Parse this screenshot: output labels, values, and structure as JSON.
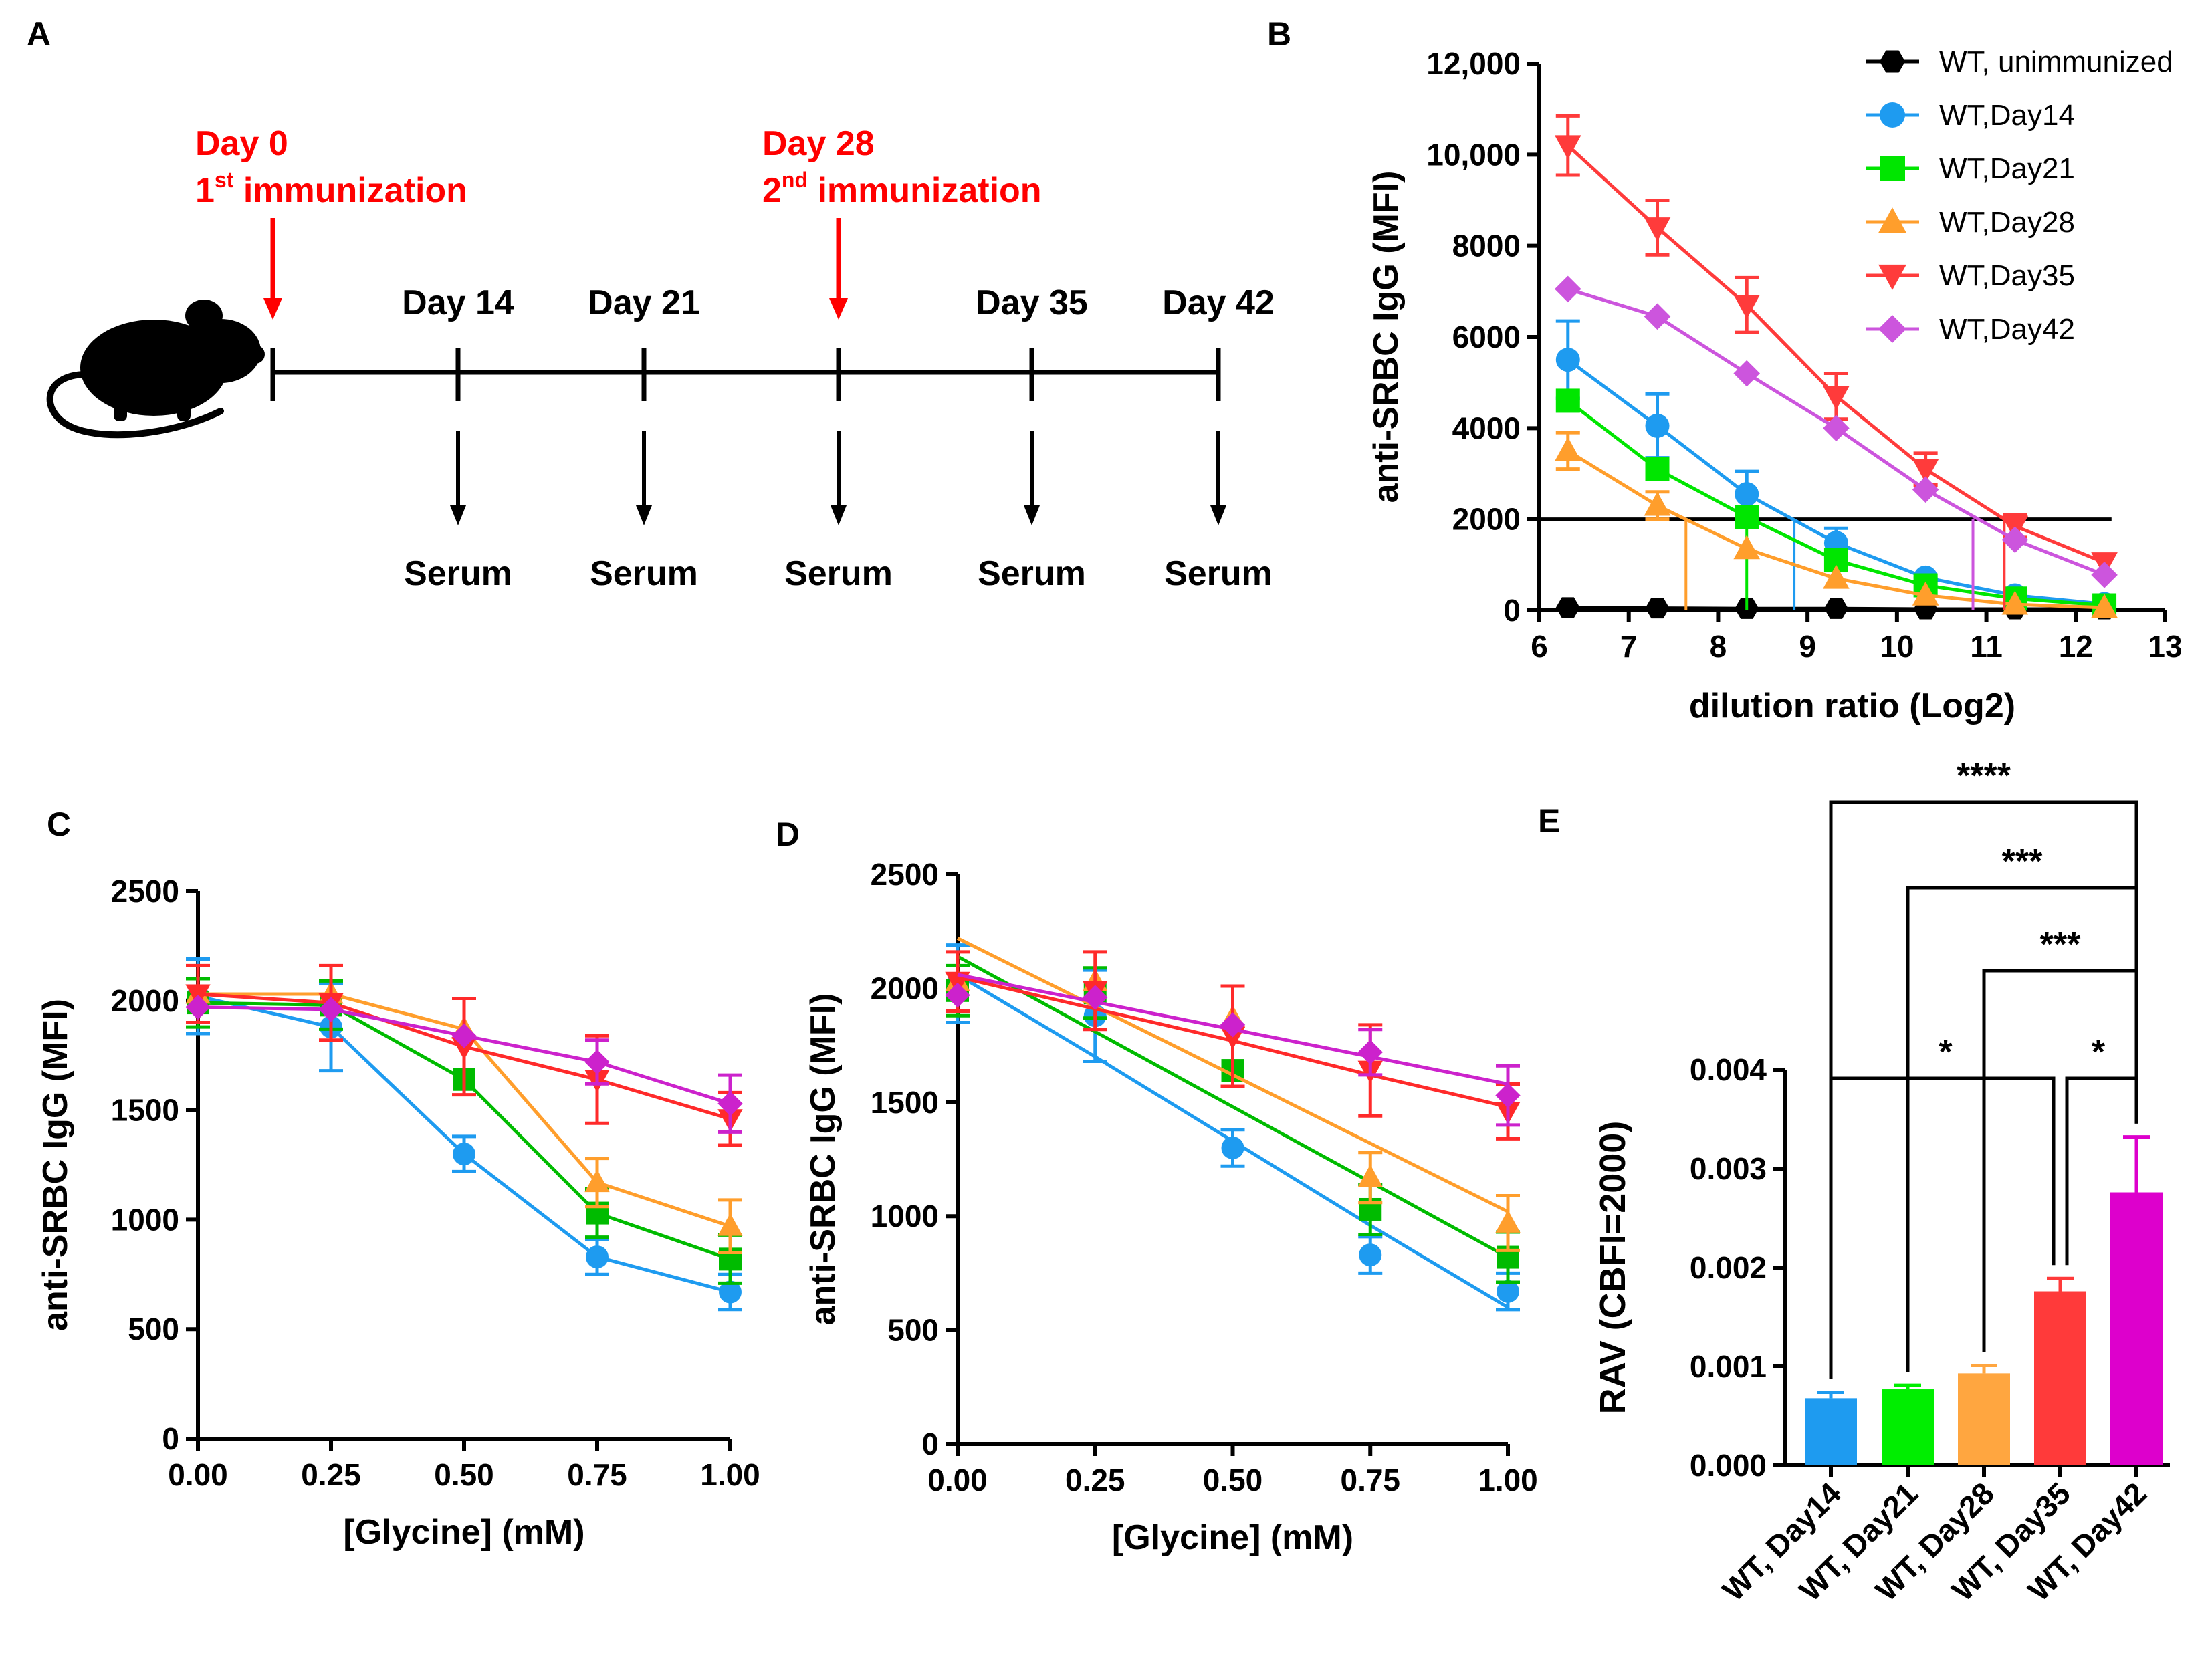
{
  "panel_labels": {
    "a": "A",
    "b": "B",
    "c": "C",
    "d": "D",
    "e": "E"
  },
  "timeline": {
    "immunization1": {
      "day": "Day 0",
      "num": "1",
      "sup": "st",
      "text": " immunization"
    },
    "immunization2": {
      "day": "Day 28",
      "num": "2",
      "sup": "nd",
      "text": " immunization"
    },
    "days": [
      "Day 14",
      "Day 21",
      "Day 35",
      "Day 42"
    ],
    "serum_label": "Serum",
    "colors": {
      "immunization": "#ff0000",
      "line": "#000000"
    }
  },
  "chart_data": [
    {
      "id": "B",
      "type": "line",
      "xlabel": "dilution ratio (Log2)",
      "ylabel": "anti-SRBC IgG (MFI)",
      "xlim": [
        6,
        13
      ],
      "ylim": [
        0,
        12000
      ],
      "xticks": [
        "6",
        "7",
        "8",
        "9",
        "10",
        "11",
        "12",
        "13"
      ],
      "yticks": [
        "0",
        "2000",
        "4000",
        "6000",
        "8000",
        "10,000",
        "12,000"
      ],
      "ytick_values": [
        0,
        2000,
        4000,
        6000,
        8000,
        10000,
        12000
      ],
      "threshold": 2000,
      "x": [
        6.32,
        7.32,
        8.32,
        9.32,
        10.32,
        11.32,
        12.32
      ],
      "series": [
        {
          "name": "WT, unimmunized",
          "color": "#000000",
          "marker": "hexagon",
          "values": [
            60,
            50,
            40,
            40,
            30,
            30,
            30
          ],
          "err": [
            0,
            0,
            0,
            0,
            0,
            0,
            0
          ],
          "cutoff": null
        },
        {
          "name": "WT,Day14",
          "color": "#1e9bf0",
          "marker": "circle",
          "values": [
            5500,
            4050,
            2550,
            1480,
            720,
            330,
            140
          ],
          "err": [
            850,
            700,
            500,
            320,
            0,
            0,
            0
          ],
          "cutoff": 8.85
        },
        {
          "name": "WT,Day21",
          "color": "#00e600",
          "marker": "square",
          "values": [
            4600,
            3100,
            2050,
            1100,
            550,
            260,
            110
          ],
          "err": [
            0,
            0,
            0,
            0,
            0,
            0,
            0
          ],
          "cutoff": 8.32
        },
        {
          "name": "WT,Day28",
          "color": "#ff9e2c",
          "marker": "triangle-up",
          "values": [
            3500,
            2300,
            1350,
            700,
            330,
            130,
            60
          ],
          "err": [
            400,
            300,
            0,
            0,
            0,
            0,
            0
          ],
          "cutoff": 7.64
        },
        {
          "name": "WT,Day35",
          "color": "#ff3b3b",
          "marker": "triangle-down",
          "values": [
            10200,
            8400,
            6700,
            4700,
            3100,
            1850,
            1050
          ],
          "err": [
            650,
            600,
            600,
            500,
            350,
            250,
            0
          ],
          "cutoff": 11.2
        },
        {
          "name": "WT,Day42",
          "color": "#cc55dd",
          "marker": "diamond",
          "values": [
            7050,
            6450,
            5200,
            4000,
            2650,
            1550,
            780
          ],
          "err": [
            0,
            0,
            0,
            0,
            0,
            0,
            0
          ],
          "cutoff": 10.85
        }
      ]
    },
    {
      "id": "C",
      "type": "line",
      "xlabel": "[Glycine] (mM)",
      "ylabel": "anti-SRBC IgG (MFI)",
      "xlim": [
        0,
        1
      ],
      "ylim": [
        0,
        2500
      ],
      "xticks": [
        "0.00",
        "0.25",
        "0.50",
        "0.75",
        "1.00"
      ],
      "yticks": [
        "0",
        "500",
        "1000",
        "1500",
        "2000",
        "2500"
      ],
      "ytick_values": [
        0,
        500,
        1000,
        1500,
        2000,
        2500
      ],
      "x": [
        0,
        0.25,
        0.5,
        0.75,
        1.0
      ],
      "series": [
        {
          "name": "WT,Day14",
          "color": "#1e9bf0",
          "marker": "circle",
          "values": [
            2020,
            1880,
            1300,
            830,
            670
          ],
          "err": [
            170,
            200,
            80,
            80,
            80
          ],
          "line": [
            2020,
            1880,
            1300,
            830,
            670
          ]
        },
        {
          "name": "WT,Day21",
          "color": "#00bb00",
          "marker": "square",
          "values": [
            1990,
            1980,
            1640,
            1030,
            820
          ],
          "err": [
            110,
            110,
            0,
            110,
            110
          ],
          "line": [
            1990,
            1980,
            1640,
            1030,
            820
          ]
        },
        {
          "name": "WT,Day28",
          "color": "#ff9e2c",
          "marker": "triangle-up",
          "values": [
            2030,
            2030,
            1870,
            1170,
            970
          ],
          "err": [
            0,
            0,
            0,
            110,
            120
          ],
          "line": [
            2030,
            2030,
            1870,
            1170,
            970
          ]
        },
        {
          "name": "WT,Day35",
          "color": "#ff2a2a",
          "marker": "triangle-down",
          "values": [
            2030,
            1990,
            1790,
            1640,
            1460
          ],
          "err": [
            130,
            170,
            220,
            200,
            120
          ],
          "line": [
            2030,
            1990,
            1790,
            1640,
            1460
          ]
        },
        {
          "name": "WT,Day42",
          "color": "#cc22cc",
          "marker": "diamond",
          "values": [
            1970,
            1960,
            1840,
            1720,
            1530
          ],
          "err": [
            0,
            0,
            0,
            100,
            130
          ],
          "line": [
            1970,
            1960,
            1840,
            1720,
            1530
          ]
        }
      ]
    },
    {
      "id": "D",
      "type": "line",
      "xlabel": "[Glycine] (mM)",
      "ylabel": "anti-SRBC IgG (MFI)",
      "xlim": [
        0,
        1
      ],
      "ylim": [
        0,
        2500
      ],
      "xticks": [
        "0.00",
        "0.25",
        "0.50",
        "0.75",
        "1.00"
      ],
      "yticks": [
        "0",
        "500",
        "1000",
        "1500",
        "2000",
        "2500"
      ],
      "ytick_values": [
        0,
        500,
        1000,
        1500,
        2000,
        2500
      ],
      "x": [
        0,
        0.25,
        0.5,
        0.75,
        1.0
      ],
      "series": [
        {
          "name": "WT,Day14",
          "color": "#1e9bf0",
          "marker": "circle",
          "values": [
            2020,
            1880,
            1300,
            830,
            670
          ],
          "err": [
            170,
            200,
            80,
            80,
            80
          ],
          "line": [
            2060,
            1700,
            1330,
            960,
            600
          ]
        },
        {
          "name": "WT,Day21",
          "color": "#00bb00",
          "marker": "square",
          "values": [
            1990,
            1980,
            1640,
            1030,
            820
          ],
          "err": [
            110,
            110,
            0,
            110,
            110
          ],
          "line": [
            2140,
            1810,
            1480,
            1150,
            820
          ]
        },
        {
          "name": "WT,Day28",
          "color": "#ff9e2c",
          "marker": "triangle-up",
          "values": [
            2030,
            2030,
            1870,
            1170,
            970
          ],
          "err": [
            0,
            0,
            0,
            110,
            120
          ],
          "line": [
            2220,
            1920,
            1620,
            1320,
            1020
          ]
        },
        {
          "name": "WT,Day35",
          "color": "#ff2a2a",
          "marker": "triangle-down",
          "values": [
            2030,
            1990,
            1790,
            1640,
            1460
          ],
          "err": [
            130,
            170,
            220,
            200,
            120
          ],
          "line": [
            2050,
            1910,
            1770,
            1620,
            1480
          ]
        },
        {
          "name": "WT,Day42",
          "color": "#cc22cc",
          "marker": "diamond",
          "values": [
            1970,
            1960,
            1840,
            1720,
            1530
          ],
          "err": [
            0,
            0,
            0,
            100,
            130
          ],
          "line": [
            2060,
            1940,
            1820,
            1700,
            1580
          ]
        }
      ]
    },
    {
      "id": "E",
      "type": "bar",
      "ylabel": "RAV (CBFI=2000)",
      "ylim": [
        0,
        0.004
      ],
      "yticks": [
        "0.000",
        "0.001",
        "0.002",
        "0.003",
        "0.004"
      ],
      "ytick_values": [
        0,
        0.001,
        0.002,
        0.003,
        0.004
      ],
      "categories": [
        "WT, Day14",
        "WT, Day21",
        "WT, Day28",
        "WT, Day35",
        "WT, Day42"
      ],
      "values": [
        0.00068,
        0.00077,
        0.00093,
        0.00176,
        0.00276
      ],
      "err": [
        6e-05,
        4e-05,
        8e-05,
        0.00013,
        0.00056
      ],
      "colors": [
        "#1e9bf0",
        "#00ee00",
        "#ffa640",
        "#ff3a3a",
        "#dd00cc"
      ],
      "significance": [
        {
          "from": 0,
          "to": 4,
          "label": "****"
        },
        {
          "from": 1,
          "to": 4,
          "label": "***"
        },
        {
          "from": 2,
          "to": 4,
          "label": "***"
        },
        {
          "from": 0,
          "to": 3,
          "label": "*"
        },
        {
          "from": 3,
          "to": 4,
          "label": "*"
        }
      ]
    }
  ]
}
